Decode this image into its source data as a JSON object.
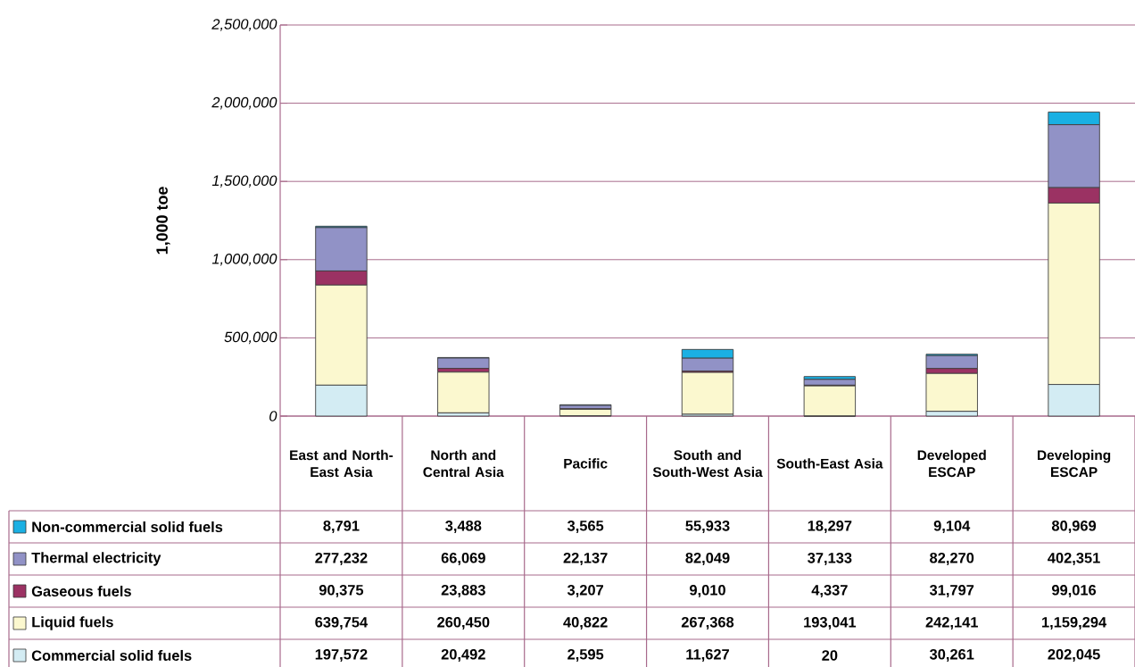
{
  "chart_data": {
    "type": "bar",
    "stacked": true,
    "ylabel": "1,000 toe",
    "categories": [
      "East and North-East Asia",
      "North and Central Asia",
      "Pacific",
      "South and South-West Asia",
      "South-East Asia",
      "Developed ESCAP",
      "Developing ESCAP"
    ],
    "series": [
      {
        "name": "Commercial solid fuels",
        "color": "#d3ecf3",
        "values": [
          197572,
          20492,
          2595,
          11627,
          20,
          30261,
          202045
        ],
        "value_labels": [
          "197,572",
          "20,492",
          "2,595",
          "11,627",
          "20",
          "30,261",
          "202,045"
        ]
      },
      {
        "name": "Liquid fuels",
        "color": "#fbf8cf",
        "values": [
          639754,
          260450,
          40822,
          267368,
          193041,
          242141,
          1159294
        ],
        "value_labels": [
          "639,754",
          "260,450",
          "40,822",
          "267,368",
          "193,041",
          "242,141",
          "1,159,294"
        ]
      },
      {
        "name": "Gaseous fuels",
        "color": "#9b3263",
        "values": [
          90375,
          23883,
          3207,
          9010,
          4337,
          31797,
          99016
        ],
        "value_labels": [
          "90,375",
          "23,883",
          "3,207",
          "9,010",
          "4,337",
          "31,797",
          "99,016"
        ]
      },
      {
        "name": "Thermal electricity",
        "color": "#9192c6",
        "values": [
          277232,
          66069,
          22137,
          82049,
          37133,
          82270,
          402351
        ],
        "value_labels": [
          "277,232",
          "66,069",
          "22,137",
          "82,049",
          "37,133",
          "82,270",
          "402,351"
        ]
      },
      {
        "name": "Non-commercial solid fuels",
        "color": "#1ab0e3",
        "values": [
          8791,
          3488,
          3565,
          55933,
          18297,
          9104,
          80969
        ],
        "value_labels": [
          "8,791",
          "3,488",
          "3,565",
          "55,933",
          "18,297",
          "9,104",
          "80,969"
        ]
      }
    ],
    "ylim": [
      0,
      2500000
    ],
    "yticks": [
      0,
      {
        "value": 500000,
        "label": "500,000"
      },
      {
        "value": 1000000,
        "label": "1,000,000"
      },
      {
        "value": 1500000,
        "label": "1,500,000"
      },
      {
        "value": 2000000,
        "label": "2,000,000"
      },
      {
        "value": 2500000,
        "label": "2,500,000"
      }
    ],
    "grid": "y",
    "legend": "bottom"
  }
}
